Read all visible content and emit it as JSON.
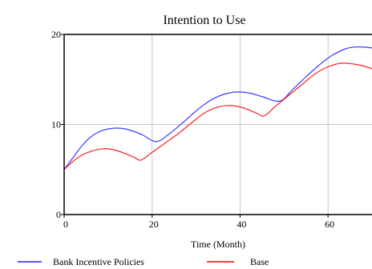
{
  "chart_data": {
    "type": "line",
    "title": "Intention to Use",
    "xlabel": "Time (Month)",
    "ylabel": "",
    "xlim": [
      0,
      70
    ],
    "ylim": [
      0,
      20
    ],
    "x_ticks": [
      0,
      20,
      40,
      60
    ],
    "y_ticks": [
      0,
      10,
      20
    ],
    "grid": true,
    "legend_position": "bottom",
    "series": [
      {
        "name": "Bank Incentive Policies",
        "color": "#3b3bff",
        "x": [
          0,
          2,
          4,
          6,
          8,
          10,
          12,
          14,
          16,
          18,
          21,
          24,
          27,
          30,
          33,
          36,
          39,
          42,
          45,
          49,
          52,
          55,
          58,
          61,
          64,
          66,
          68,
          70
        ],
        "y": [
          5,
          6.3,
          7.6,
          8.6,
          9.2,
          9.5,
          9.6,
          9.5,
          9.2,
          8.8,
          8.1,
          9.0,
          10.2,
          11.5,
          12.6,
          13.3,
          13.6,
          13.5,
          13.1,
          12.6,
          13.9,
          15.3,
          16.6,
          17.7,
          18.4,
          18.6,
          18.6,
          18.5
        ]
      },
      {
        "name": "Base",
        "color": "#ff2020",
        "x": [
          0,
          2,
          4,
          6,
          8,
          10,
          12,
          14,
          16,
          17.5,
          20,
          23,
          26,
          29,
          32,
          35,
          38,
          41,
          44,
          45.5,
          48,
          51,
          54,
          57,
          60,
          63,
          66,
          68,
          70
        ],
        "y": [
          5,
          5.9,
          6.6,
          7.0,
          7.25,
          7.3,
          7.1,
          6.75,
          6.35,
          6.05,
          6.9,
          7.95,
          9.0,
          10.2,
          11.3,
          11.95,
          12.1,
          11.8,
          11.2,
          10.95,
          12.0,
          13.2,
          14.4,
          15.6,
          16.4,
          16.8,
          16.7,
          16.5,
          16.2
        ]
      }
    ]
  }
}
